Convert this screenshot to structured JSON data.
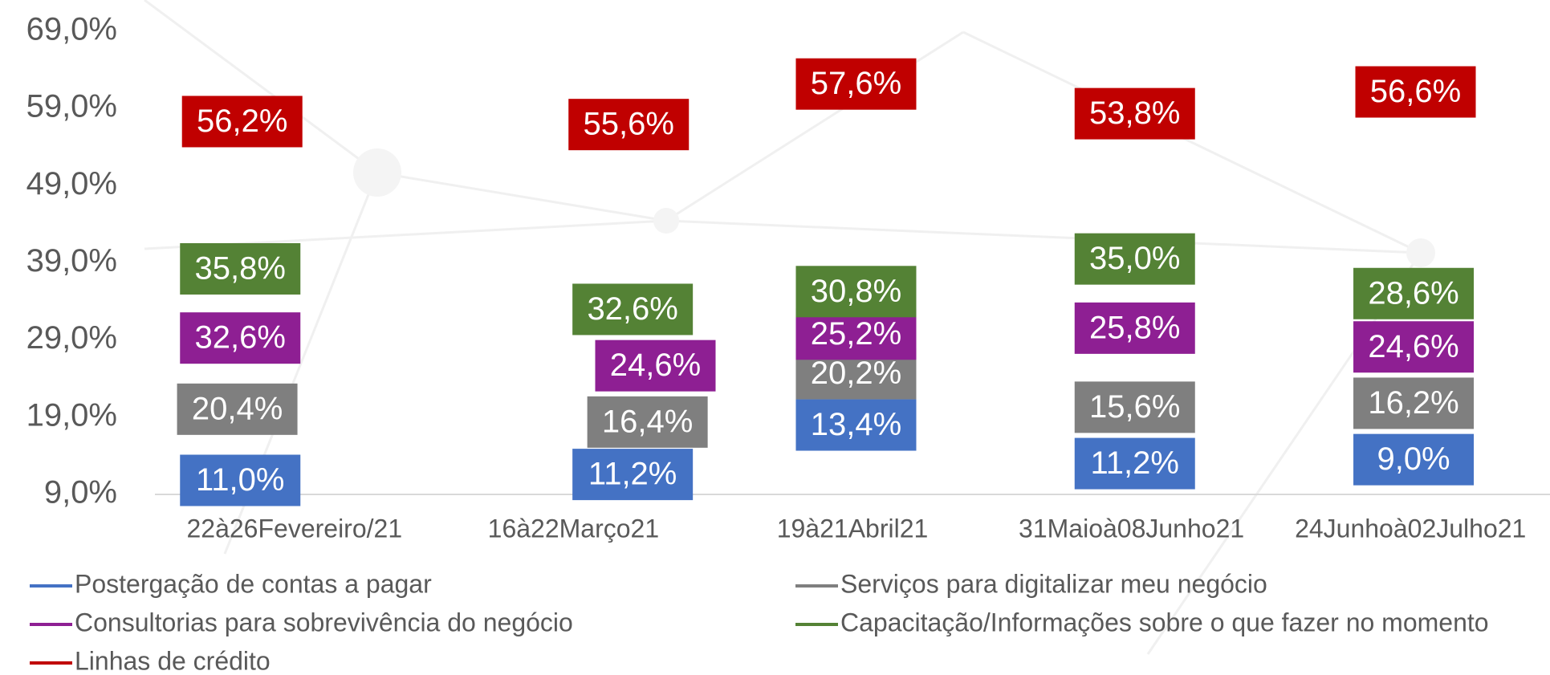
{
  "chart_data": {
    "type": "line",
    "categories": [
      "22à26Fevereiro/21",
      "16à22Março21",
      "19à21Abril21",
      "31Maioà08Junho21",
      "24Junhoà02Julho21"
    ],
    "series": [
      {
        "name": "Postergação de contas a pagar",
        "color": "#4472c4",
        "values": [
          11.0,
          11.2,
          13.4,
          11.2,
          9.0
        ],
        "value_labels": [
          "11,0%",
          "11,2%",
          "13,4%",
          "11,2%",
          "9,0%"
        ]
      },
      {
        "name": "Serviços para digitalizar meu negócio",
        "color": "#7f7f7f",
        "values": [
          20.4,
          16.4,
          20.2,
          15.6,
          16.2
        ],
        "value_labels": [
          "20,4%",
          "16,4%",
          "20,2%",
          "15,6%",
          "16,2%"
        ]
      },
      {
        "name": "Consultorias para sobrevivência do negócio",
        "color": "#8e1f93",
        "values": [
          32.6,
          24.6,
          25.2,
          25.8,
          24.6
        ],
        "value_labels": [
          "32,6%",
          "24,6%",
          "25,2%",
          "25,8%",
          "24,6%"
        ]
      },
      {
        "name": "Capacitação/Informações sobre o que fazer no momento",
        "color": "#548235",
        "values": [
          35.8,
          32.6,
          30.8,
          35.0,
          28.6
        ],
        "value_labels": [
          "35,8%",
          "32,6%",
          "30,8%",
          "35,0%",
          "28,6%"
        ]
      },
      {
        "name": "Linhas de crédito",
        "color": "#c00000",
        "values": [
          56.2,
          55.6,
          57.6,
          53.8,
          56.6
        ],
        "value_labels": [
          "56,2%",
          "55,6%",
          "57,6%",
          "53,8%",
          "56,6%"
        ]
      }
    ],
    "ylim": [
      9,
      69
    ],
    "yticks": [
      {
        "value": 9,
        "label": "9,0%"
      },
      {
        "value": 19,
        "label": "19,0%"
      },
      {
        "value": 29,
        "label": "29,0%"
      },
      {
        "value": 39,
        "label": "39,0%"
      },
      {
        "value": 49,
        "label": "49,0%"
      },
      {
        "value": 59,
        "label": "59,0%"
      },
      {
        "value": 69,
        "label": "69,0%"
      }
    ],
    "grid": false,
    "legend": "bottom"
  }
}
